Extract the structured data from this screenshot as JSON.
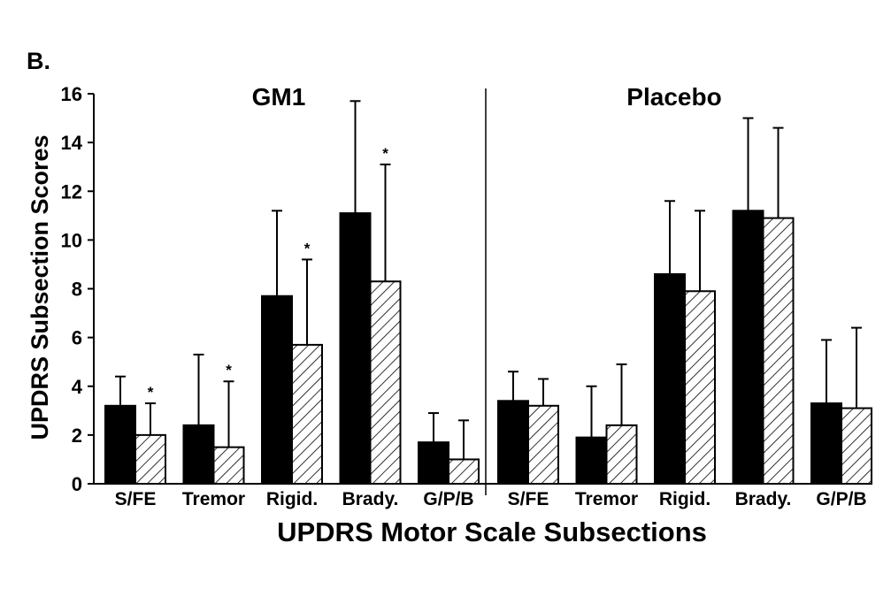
{
  "chart_data": {
    "type": "bar",
    "panel_label": "B.",
    "ylabel": "UPDRS Subsection Scores",
    "xlabel": "UPDRS Motor Scale Subsections",
    "ylim": [
      0,
      16
    ],
    "yticks": [
      0,
      2,
      4,
      6,
      8,
      10,
      12,
      14,
      16
    ],
    "grid": false,
    "legend": "none",
    "colors": {
      "solid": "#000000",
      "hatched": "#ffffff",
      "divider": "#000000"
    },
    "groups": [
      {
        "title": "GM1",
        "categories": [
          "S/FE",
          "Tremor",
          "Rigid.",
          "Brady.",
          "G/P/B"
        ],
        "series": [
          {
            "style": "solid",
            "values": [
              3.2,
              2.4,
              7.7,
              11.1,
              1.7
            ],
            "errors": [
              1.2,
              2.9,
              3.5,
              4.6,
              1.2
            ]
          },
          {
            "style": "hatched",
            "values": [
              2.0,
              1.5,
              5.7,
              8.3,
              1.0
            ],
            "errors": [
              1.3,
              2.7,
              3.5,
              4.8,
              1.6
            ]
          }
        ],
        "significance": [
          "*",
          "*",
          "*",
          "*",
          ""
        ]
      },
      {
        "title": "Placebo",
        "categories": [
          "S/FE",
          "Tremor",
          "Rigid.",
          "Brady.",
          "G/P/B"
        ],
        "series": [
          {
            "style": "solid",
            "values": [
              3.4,
              1.9,
              8.6,
              11.2,
              3.3
            ],
            "errors": [
              1.2,
              2.1,
              3.0,
              3.8,
              2.6
            ]
          },
          {
            "style": "hatched",
            "values": [
              3.2,
              2.4,
              7.9,
              10.9,
              3.1
            ],
            "errors": [
              1.1,
              2.5,
              3.3,
              3.7,
              3.3
            ]
          }
        ],
        "significance": [
          "",
          "",
          "",
          "",
          ""
        ]
      }
    ]
  }
}
